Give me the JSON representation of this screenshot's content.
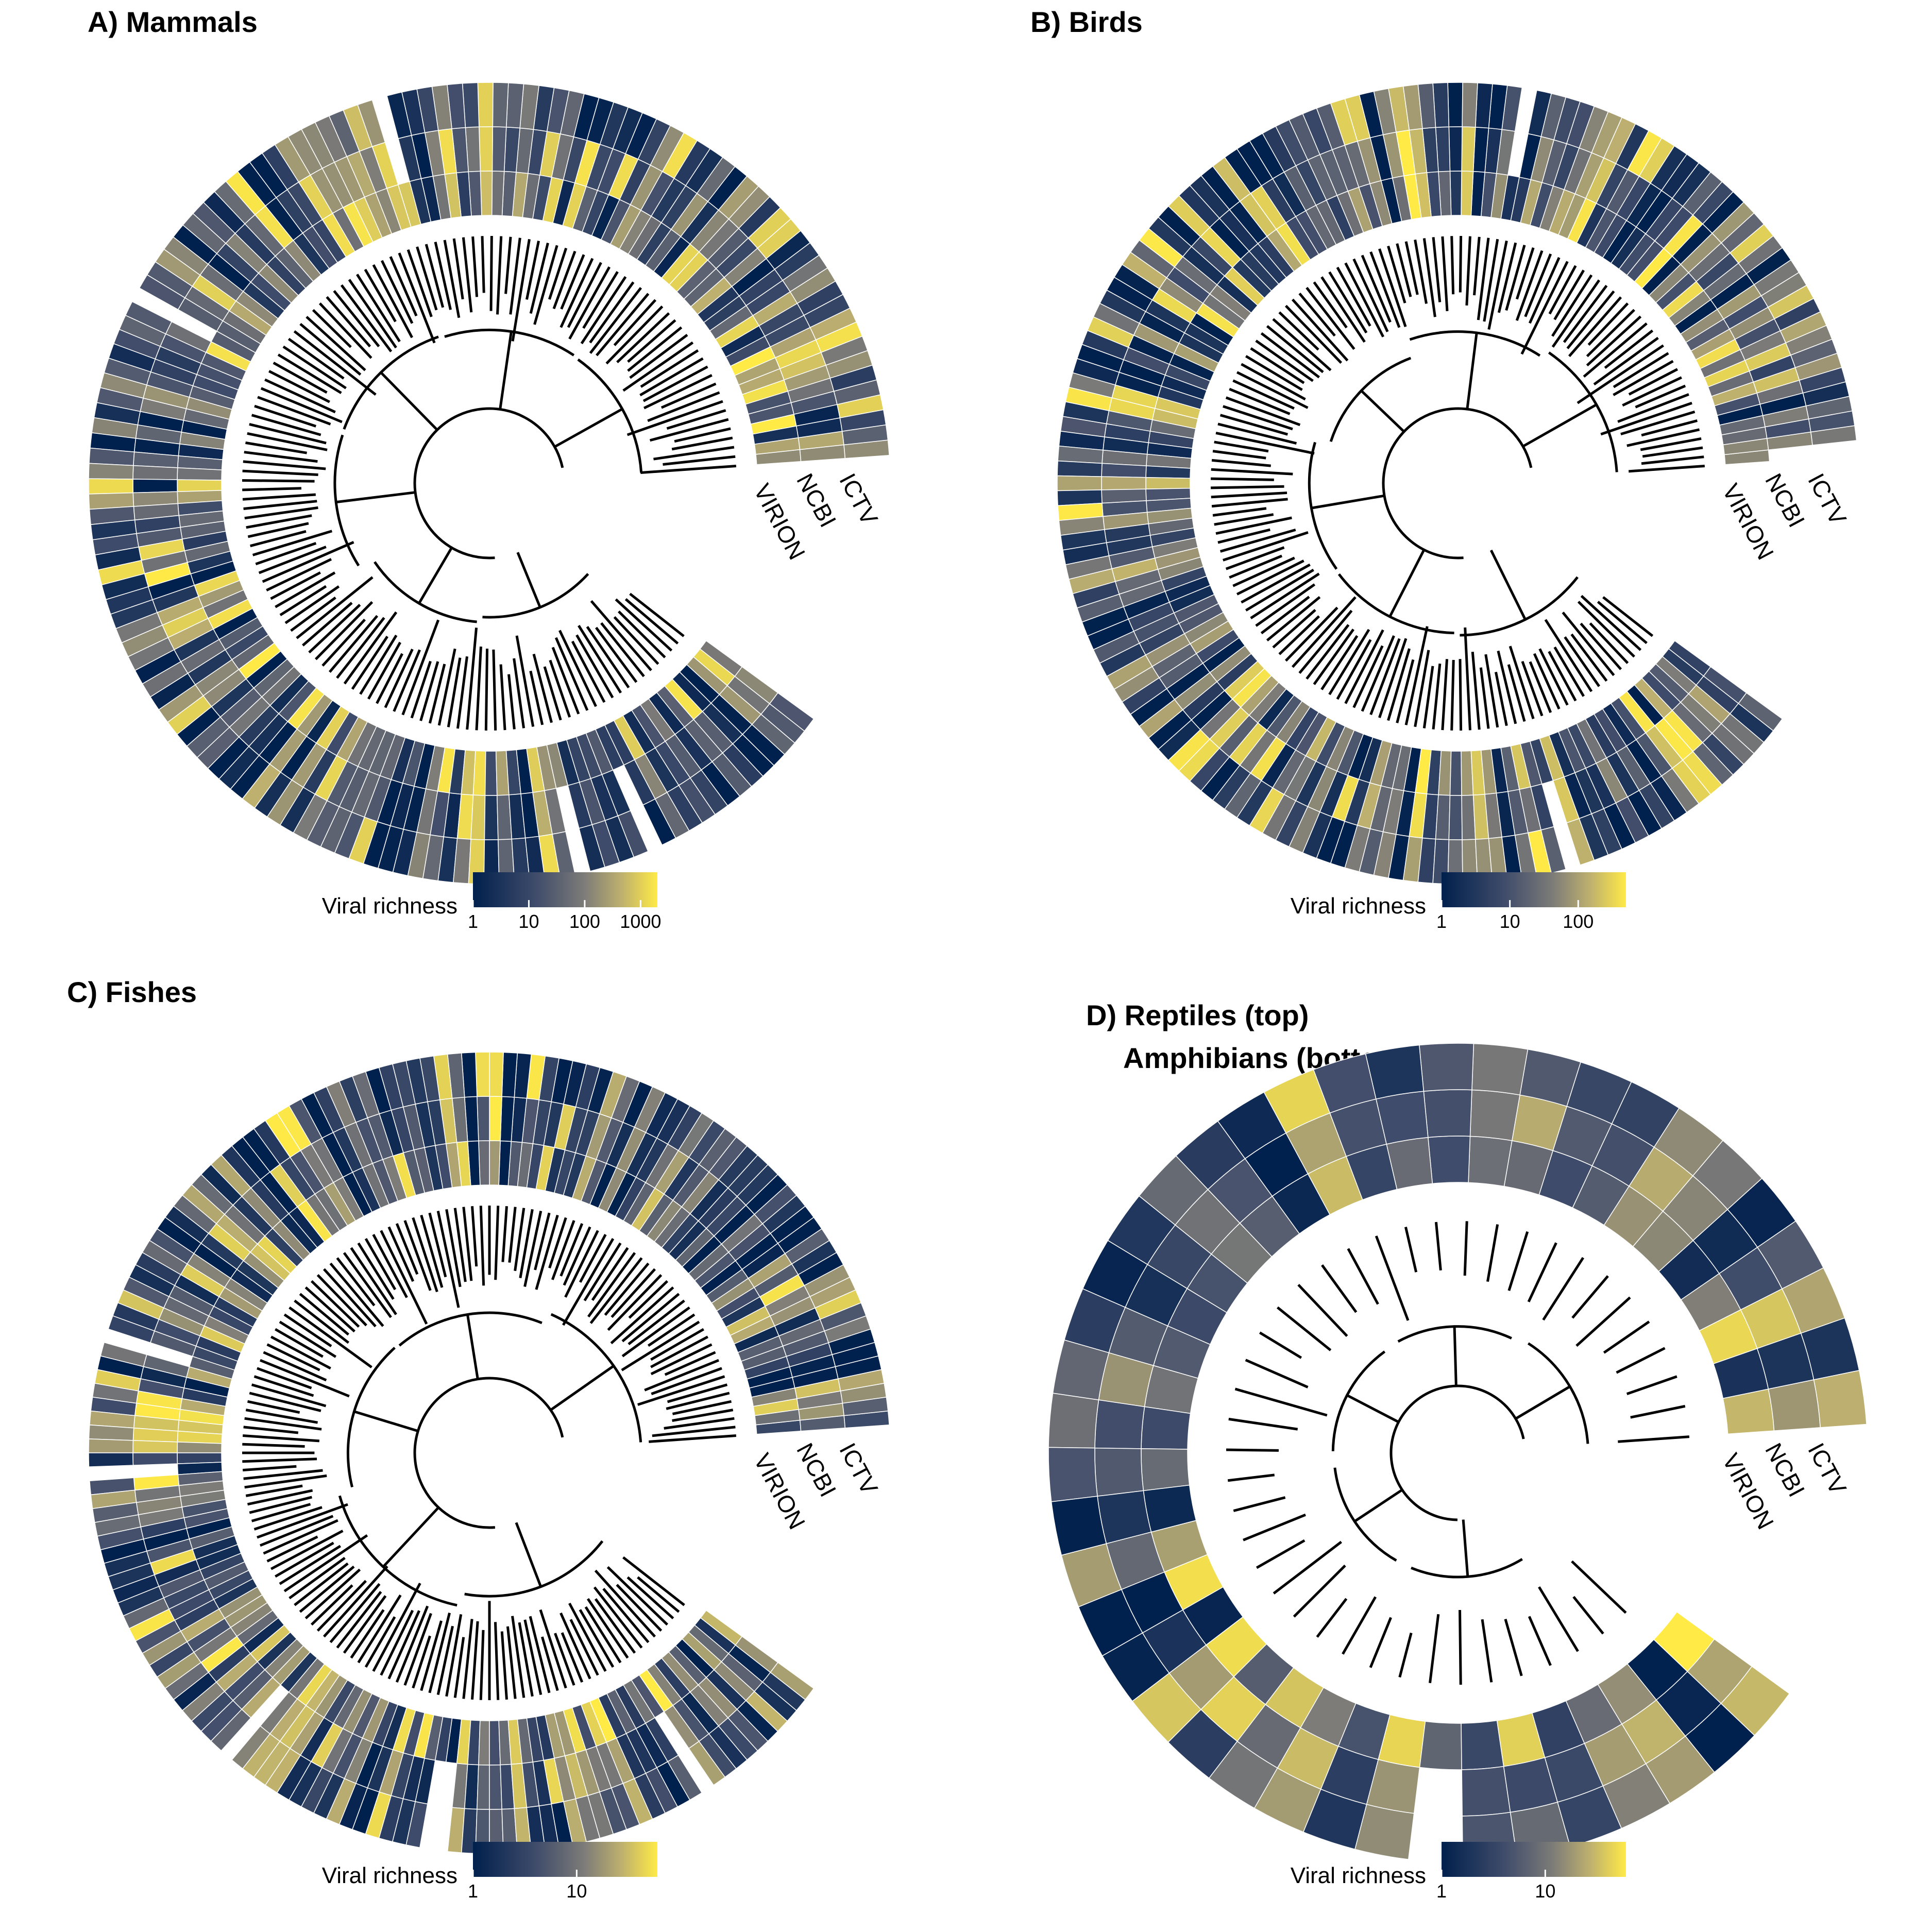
{
  "figure": {
    "colors": {
      "low": "#00204d",
      "mid": "#7c7b78",
      "high": "#ffea46",
      "branch": "#000000",
      "background": "#ffffff",
      "cell_border": "#ffffff"
    },
    "track_labels": [
      "VIRION",
      "NCBI",
      "ICTV"
    ]
  },
  "chart_data": [
    {
      "type": "heatmap",
      "title": "A) Mammals",
      "layout": "circular phylogeny with three concentric heatmap rings",
      "tracks": [
        "VIRION",
        "NCBI",
        "ICTV"
      ],
      "legend": {
        "title": "Viral richness",
        "scale": "log",
        "ticks": [
          "1",
          "10",
          "100",
          "1000"
        ],
        "range": [
          1,
          2000
        ]
      },
      "tips": 146
    },
    {
      "type": "heatmap",
      "title": "B) Birds",
      "layout": "circular phylogeny with three concentric heatmap rings",
      "tracks": [
        "VIRION",
        "NCBI",
        "ICTV"
      ],
      "legend": {
        "title": "Viral richness",
        "scale": "log",
        "ticks": [
          "1",
          "10",
          "100"
        ],
        "range": [
          1,
          500
        ]
      },
      "tips": 150
    },
    {
      "type": "heatmap",
      "title": "C) Fishes",
      "layout": "circular phylogeny with three concentric heatmap rings",
      "tracks": [
        "VIRION",
        "NCBI",
        "ICTV"
      ],
      "legend": {
        "title": "Viral richness",
        "scale": "log",
        "ticks": [
          "1",
          "10"
        ],
        "range": [
          1,
          60
        ]
      },
      "tips": 160
    },
    {
      "type": "heatmap",
      "title_line1": "D) Reptiles (top)",
      "title_line2": "Amphibians (bottom)",
      "layout": "circular phylogeny with three concentric heatmap rings",
      "tracks": [
        "VIRION",
        "NCBI",
        "ICTV"
      ],
      "legend": {
        "title": "Viral richness",
        "scale": "log",
        "ticks": [
          "1",
          "10"
        ],
        "range": [
          1,
          60
        ]
      },
      "tips": 42
    }
  ]
}
